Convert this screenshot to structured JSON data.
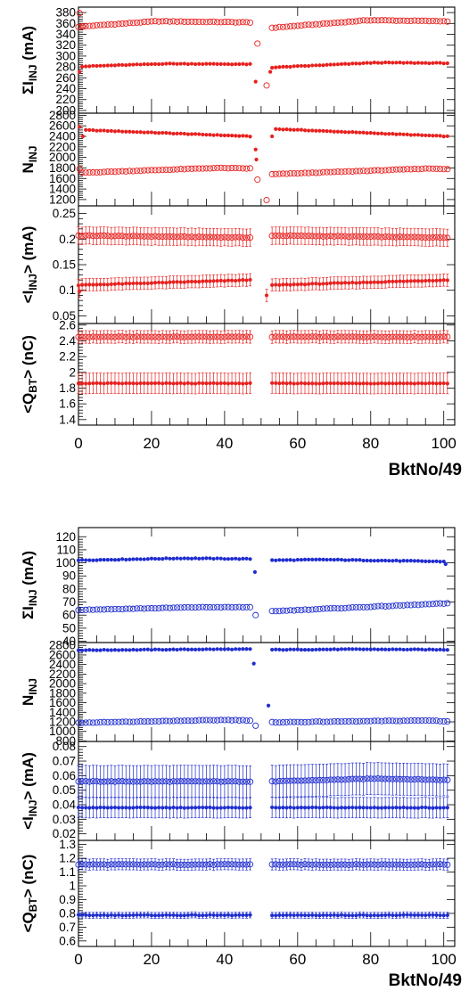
{
  "chart_data": [
    {
      "type": "scatter",
      "group": "upper",
      "color": "#e8201e",
      "xlabel": "BktNo/49",
      "xlim": [
        0,
        103
      ],
      "xticks": [
        0,
        20,
        40,
        60,
        80,
        100
      ],
      "panels": [
        {
          "ylabel_main": "ΣI",
          "ylabel_sub": "INJ",
          "ylabel_unit": " (mA)",
          "ylim": [
            195,
            390
          ],
          "yticks": [
            200,
            220,
            240,
            260,
            280,
            300,
            320,
            340,
            360,
            380
          ],
          "series": [
            {
              "name": "",
              "marker": "open",
              "segments": [
                {
                  "x_start": 0,
                  "x_end": 47,
                  "y_start": 354,
                  "y_end": 362,
                  "y_peak": 364,
                  "peak_at": 0.45
                },
                {
                  "x_start": 53,
                  "x_end": 101,
                  "y_start": 352,
                  "y_end": 364,
                  "y_peak": 366,
                  "peak_at": 0.55
                }
              ],
              "extra_points": [
                [
                  0.3,
                  379
                ],
                [
                  1.2,
                  354
                ],
                [
                  49,
                  323
                ],
                [
                  51.5,
                  246
                ]
              ]
            },
            {
              "name": "",
              "marker": "filled",
              "segments": [
                {
                  "x_start": 1,
                  "x_end": 47,
                  "y_start": 281,
                  "y_end": 285,
                  "y_peak": 286,
                  "peak_at": 0.5
                },
                {
                  "x_start": 53,
                  "x_end": 101,
                  "y_start": 279,
                  "y_end": 287,
                  "y_peak": 288,
                  "peak_at": 0.6
                }
              ],
              "extra_points": [
                [
                  0.3,
                  271
                ],
                [
                  48.5,
                  253
                ],
                [
                  52.5,
                  271
                ]
              ]
            }
          ]
        },
        {
          "ylabel_main": "N",
          "ylabel_sub": "INJ",
          "ylabel_unit": "",
          "ylim": [
            1080,
            2840
          ],
          "yticks": [
            1200,
            1400,
            1600,
            1800,
            2000,
            2200,
            2400,
            2600,
            2800
          ],
          "series": [
            {
              "name": "",
              "marker": "filled",
              "segments": [
                {
                  "x_start": 2,
                  "x_end": 47,
                  "y_start": 2520,
                  "y_end": 2400,
                  "y_peak": 2520,
                  "peak_at": 0.0
                },
                {
                  "x_start": 54,
                  "x_end": 101,
                  "y_start": 2540,
                  "y_end": 2400,
                  "y_peak": 2540,
                  "peak_at": 0.0
                }
              ],
              "extra_points": [
                [
                  0.3,
                  2580
                ],
                [
                  1.2,
                  2400
                ],
                [
                  48.5,
                  2150
                ],
                [
                  48.7,
                  1960
                ],
                [
                  53,
                  2400
                ]
              ]
            },
            {
              "name": "",
              "marker": "open",
              "segments": [
                {
                  "x_start": 1,
                  "x_end": 47,
                  "y_start": 1710,
                  "y_end": 1790,
                  "y_peak": 1800,
                  "peak_at": 0.8
                },
                {
                  "x_start": 53,
                  "x_end": 101,
                  "y_start": 1680,
                  "y_end": 1780,
                  "y_peak": 1790,
                  "peak_at": 0.9
                }
              ],
              "extra_points": [
                [
                  0.3,
                  1780
                ],
                [
                  49,
                  1580
                ],
                [
                  51.5,
                  1190
                ]
              ]
            }
          ]
        },
        {
          "ylabel_main": "<I",
          "ylabel_sub": "INJ",
          "ylabel_unit": "> (mA)",
          "ylim": [
            0.035,
            0.265
          ],
          "yticks": [
            0.05,
            0.1,
            0.15,
            0.2,
            0.25
          ],
          "series": [
            {
              "name": "",
              "marker": "open",
              "err": 0.017,
              "segments": [
                {
                  "x_start": 0,
                  "x_end": 47,
                  "y_start": 0.207,
                  "y_end": 0.203,
                  "y_peak": 0.207,
                  "peak_at": 0.0
                },
                {
                  "x_start": 53,
                  "x_end": 101,
                  "y_start": 0.207,
                  "y_end": 0.203,
                  "y_peak": 0.207,
                  "peak_at": 0.0
                }
              ],
              "extra_points": []
            },
            {
              "name": "",
              "marker": "filled",
              "err": 0.012,
              "segments": [
                {
                  "x_start": 0,
                  "x_end": 47,
                  "y_start": 0.11,
                  "y_end": 0.12,
                  "y_peak": 0.12,
                  "peak_at": 1.0
                },
                {
                  "x_start": 53,
                  "x_end": 101,
                  "y_start": 0.11,
                  "y_end": 0.12,
                  "y_peak": 0.12,
                  "peak_at": 1.0
                }
              ],
              "extra_points": [
                [
                  0.3,
                  0.098
                ],
                [
                  51.5,
                  0.09
                ]
              ]
            }
          ]
        },
        {
          "ylabel_main": "<Q",
          "ylabel_sub": "BT",
          "ylabel_unit": "> (nC)",
          "ylim": [
            1.33,
            2.62
          ],
          "yticks": [
            1.4,
            1.6,
            1.8,
            2.0,
            2.2,
            2.4,
            2.6
          ],
          "ytick_labels": [
            "1.4",
            "1.6",
            "1.8",
            "2",
            "2.2",
            "2.4",
            "2.6"
          ],
          "series": [
            {
              "name": "",
              "marker": "open",
              "err": 0.08,
              "segments": [
                {
                  "x_start": 0,
                  "x_end": 47,
                  "y_start": 2.45,
                  "y_end": 2.45,
                  "y_peak": 2.45,
                  "peak_at": 0.0
                },
                {
                  "x_start": 53,
                  "x_end": 101,
                  "y_start": 2.45,
                  "y_end": 2.45,
                  "y_peak": 2.45,
                  "peak_at": 0.0
                }
              ],
              "extra_points": []
            },
            {
              "name": "",
              "marker": "filled",
              "err": 0.13,
              "segments": [
                {
                  "x_start": 0,
                  "x_end": 47,
                  "y_start": 1.86,
                  "y_end": 1.86,
                  "y_peak": 1.86,
                  "peak_at": 0.0
                },
                {
                  "x_start": 53,
                  "x_end": 101,
                  "y_start": 1.86,
                  "y_end": 1.86,
                  "y_peak": 1.86,
                  "peak_at": 0.0
                }
              ],
              "extra_points": []
            }
          ]
        }
      ]
    },
    {
      "type": "scatter",
      "group": "lower",
      "color": "#1f2dcf",
      "xlabel": "BktNo/49",
      "xlim": [
        0,
        103
      ],
      "xticks": [
        0,
        20,
        40,
        60,
        80,
        100
      ],
      "panels": [
        {
          "ylabel_main": "ΣI",
          "ylabel_sub": "INJ",
          "ylabel_unit": " (mA)",
          "ylim": [
            39,
            127
          ],
          "yticks": [
            40,
            50,
            60,
            70,
            80,
            90,
            100,
            110,
            120
          ],
          "series": [
            {
              "name": "",
              "marker": "filled",
              "segments": [
                {
                  "x_start": 0,
                  "x_end": 47,
                  "y_start": 102,
                  "y_end": 103,
                  "y_peak": 103.5,
                  "peak_at": 0.6
                },
                {
                  "x_start": 53,
                  "x_end": 100,
                  "y_start": 102,
                  "y_end": 101,
                  "y_peak": 102.5,
                  "peak_at": 0.3
                }
              ],
              "extra_points": [
                [
                  48.3,
                  93
                ],
                [
                  100.5,
                  99
                ]
              ]
            },
            {
              "name": "",
              "marker": "open",
              "segments": [
                {
                  "x_start": 0,
                  "x_end": 47,
                  "y_start": 64,
                  "y_end": 66,
                  "y_peak": 66,
                  "peak_at": 0.7
                },
                {
                  "x_start": 53,
                  "x_end": 101,
                  "y_start": 63,
                  "y_end": 69,
                  "y_peak": 69,
                  "peak_at": 1.0
                }
              ],
              "extra_points": [
                [
                  48.5,
                  60
                ]
              ]
            }
          ]
        },
        {
          "ylabel_main": "N",
          "ylabel_sub": "INJ",
          "ylabel_unit": "",
          "ylim": [
            790,
            2860
          ],
          "yticks": [
            800,
            1000,
            1200,
            1400,
            1600,
            1800,
            2000,
            2200,
            2400,
            2600,
            2800
          ],
          "series": [
            {
              "name": "",
              "marker": "filled",
              "segments": [
                {
                  "x_start": 0,
                  "x_end": 47,
                  "y_start": 2700,
                  "y_end": 2720,
                  "y_peak": 2720,
                  "peak_at": 0.8
                },
                {
                  "x_start": 53,
                  "x_end": 101,
                  "y_start": 2710,
                  "y_end": 2710,
                  "y_peak": 2720,
                  "peak_at": 0.5
                }
              ],
              "extra_points": [
                [
                  48,
                  2420
                ],
                [
                  52,
                  1540
                ]
              ]
            },
            {
              "name": "",
              "marker": "open",
              "segments": [
                {
                  "x_start": 0,
                  "x_end": 47,
                  "y_start": 1180,
                  "y_end": 1230,
                  "y_peak": 1240,
                  "peak_at": 0.85
                },
                {
                  "x_start": 53,
                  "x_end": 101,
                  "y_start": 1190,
                  "y_end": 1210,
                  "y_peak": 1230,
                  "peak_at": 0.9
                }
              ],
              "extra_points": [
                [
                  48.5,
                  1120
                ]
              ]
            }
          ]
        },
        {
          "ylabel_main": "<I",
          "ylabel_sub": "INJ",
          "ylabel_unit": "> (mA)",
          "ylim": [
            0.0155,
            0.0835
          ],
          "yticks": [
            0.02,
            0.03,
            0.04,
            0.05,
            0.06,
            0.07,
            0.08
          ],
          "series": [
            {
              "name": "",
              "marker": "open",
              "err": 0.011,
              "segments": [
                {
                  "x_start": 0,
                  "x_end": 47,
                  "y_start": 0.056,
                  "y_end": 0.056,
                  "y_peak": 0.056,
                  "peak_at": 0.0
                },
                {
                  "x_start": 53,
                  "x_end": 101,
                  "y_start": 0.056,
                  "y_end": 0.057,
                  "y_peak": 0.058,
                  "peak_at": 0.6
                }
              ],
              "extra_points": []
            },
            {
              "name": "",
              "marker": "filled",
              "err": 0.007,
              "segments": [
                {
                  "x_start": 0,
                  "x_end": 47,
                  "y_start": 0.038,
                  "y_end": 0.038,
                  "y_peak": 0.038,
                  "peak_at": 0.0
                },
                {
                  "x_start": 53,
                  "x_end": 101,
                  "y_start": 0.038,
                  "y_end": 0.038,
                  "y_peak": 0.038,
                  "peak_at": 0.0
                }
              ],
              "extra_points": []
            }
          ]
        },
        {
          "ylabel_main": "<Q",
          "ylabel_sub": "BT",
          "ylabel_unit": "> (nC)",
          "ylim": [
            0.56,
            1.33
          ],
          "yticks": [
            0.6,
            0.7,
            0.8,
            0.9,
            1.0,
            1.1,
            1.2,
            1.3
          ],
          "ytick_labels": [
            "0.6",
            "0.7",
            "0.8",
            "0.9",
            "1",
            "1.1",
            "1.2",
            "1.3"
          ],
          "series": [
            {
              "name": "",
              "marker": "open",
              "err": 0.04,
              "segments": [
                {
                  "x_start": 0,
                  "x_end": 47,
                  "y_start": 1.155,
                  "y_end": 1.155,
                  "y_peak": 1.155,
                  "peak_at": 0.0
                },
                {
                  "x_start": 53,
                  "x_end": 101,
                  "y_start": 1.155,
                  "y_end": 1.155,
                  "y_peak": 1.155,
                  "peak_at": 0.0
                }
              ],
              "extra_points": []
            },
            {
              "name": "",
              "marker": "filled",
              "err": 0.022,
              "segments": [
                {
                  "x_start": 0,
                  "x_end": 47,
                  "y_start": 0.787,
                  "y_end": 0.787,
                  "y_peak": 0.787,
                  "peak_at": 0.0
                },
                {
                  "x_start": 53,
                  "x_end": 101,
                  "y_start": 0.787,
                  "y_end": 0.787,
                  "y_peak": 0.787,
                  "peak_at": 0.0
                }
              ],
              "extra_points": []
            }
          ]
        }
      ]
    }
  ]
}
